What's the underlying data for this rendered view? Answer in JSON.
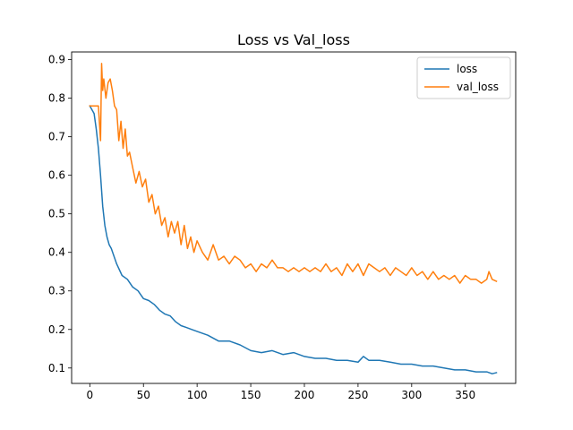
{
  "chart_data": {
    "type": "line",
    "title": "Loss vs Val_loss",
    "xlabel": "",
    "ylabel": "",
    "xlim": [
      -16.95,
      396.95
    ],
    "ylim": [
      0.06,
      0.92
    ],
    "x_ticks": [
      0,
      50,
      100,
      150,
      200,
      250,
      300,
      350
    ],
    "y_ticks": [
      0.1,
      0.2,
      0.3,
      0.4,
      0.5,
      0.6,
      0.7,
      0.8,
      0.9
    ],
    "grid": false,
    "legend_position": "top-right",
    "series": [
      {
        "name": "loss",
        "color": "#1f77b4",
        "x": [
          0,
          2,
          4,
          6,
          8,
          10,
          12,
          14,
          16,
          18,
          20,
          25,
          30,
          35,
          40,
          45,
          50,
          55,
          60,
          65,
          70,
          75,
          80,
          85,
          90,
          95,
          100,
          110,
          120,
          130,
          140,
          150,
          160,
          170,
          180,
          190,
          200,
          210,
          220,
          230,
          240,
          250,
          255,
          260,
          270,
          280,
          290,
          300,
          310,
          320,
          330,
          340,
          350,
          360,
          370,
          375,
          379
        ],
        "y": [
          0.78,
          0.77,
          0.76,
          0.72,
          0.67,
          0.6,
          0.52,
          0.47,
          0.44,
          0.42,
          0.41,
          0.37,
          0.34,
          0.33,
          0.31,
          0.3,
          0.28,
          0.275,
          0.265,
          0.25,
          0.24,
          0.235,
          0.22,
          0.21,
          0.205,
          0.2,
          0.195,
          0.185,
          0.17,
          0.17,
          0.16,
          0.145,
          0.14,
          0.145,
          0.135,
          0.14,
          0.13,
          0.125,
          0.125,
          0.12,
          0.12,
          0.115,
          0.13,
          0.12,
          0.12,
          0.115,
          0.11,
          0.11,
          0.105,
          0.105,
          0.1,
          0.095,
          0.095,
          0.09,
          0.09,
          0.085,
          0.088
        ]
      },
      {
        "name": "val_loss",
        "color": "#ff7f0e",
        "x": [
          0,
          3,
          6,
          8,
          10,
          11,
          12,
          13,
          15,
          17,
          19,
          21,
          23,
          25,
          27,
          29,
          31,
          33,
          35,
          37,
          40,
          43,
          46,
          49,
          52,
          55,
          58,
          61,
          64,
          67,
          70,
          73,
          76,
          79,
          82,
          85,
          88,
          91,
          94,
          97,
          100,
          105,
          110,
          115,
          120,
          125,
          130,
          135,
          140,
          145,
          150,
          155,
          160,
          165,
          170,
          175,
          180,
          185,
          190,
          195,
          200,
          205,
          210,
          215,
          220,
          225,
          230,
          235,
          240,
          245,
          250,
          255,
          260,
          265,
          270,
          275,
          280,
          285,
          290,
          295,
          300,
          305,
          310,
          315,
          320,
          325,
          330,
          335,
          340,
          345,
          350,
          355,
          360,
          365,
          370,
          372,
          375,
          379
        ],
        "y": [
          0.78,
          0.78,
          0.78,
          0.78,
          0.69,
          0.89,
          0.82,
          0.85,
          0.8,
          0.84,
          0.85,
          0.82,
          0.78,
          0.77,
          0.69,
          0.74,
          0.67,
          0.72,
          0.65,
          0.66,
          0.62,
          0.58,
          0.61,
          0.57,
          0.59,
          0.53,
          0.55,
          0.5,
          0.52,
          0.47,
          0.49,
          0.44,
          0.48,
          0.45,
          0.48,
          0.42,
          0.47,
          0.41,
          0.44,
          0.4,
          0.43,
          0.4,
          0.38,
          0.42,
          0.38,
          0.39,
          0.37,
          0.39,
          0.38,
          0.36,
          0.37,
          0.35,
          0.37,
          0.36,
          0.38,
          0.36,
          0.36,
          0.35,
          0.36,
          0.35,
          0.36,
          0.35,
          0.36,
          0.35,
          0.37,
          0.35,
          0.36,
          0.34,
          0.37,
          0.35,
          0.37,
          0.34,
          0.37,
          0.36,
          0.35,
          0.36,
          0.34,
          0.36,
          0.35,
          0.34,
          0.36,
          0.34,
          0.35,
          0.33,
          0.35,
          0.33,
          0.34,
          0.33,
          0.34,
          0.32,
          0.34,
          0.33,
          0.33,
          0.32,
          0.33,
          0.35,
          0.33,
          0.325
        ]
      }
    ]
  }
}
